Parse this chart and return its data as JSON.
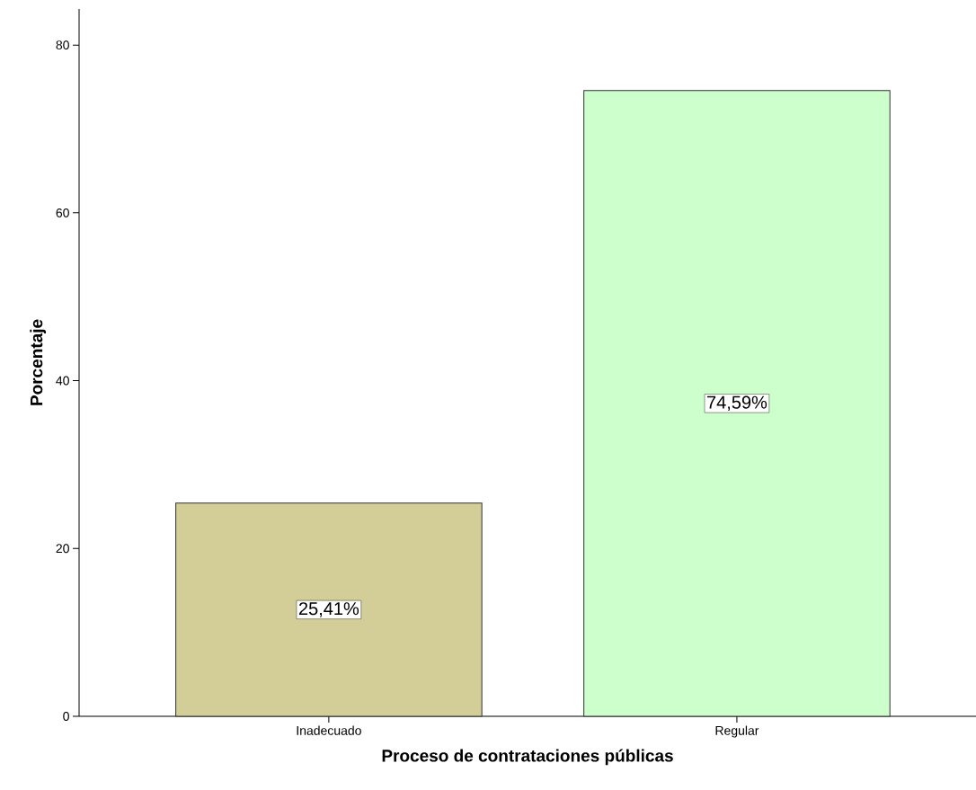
{
  "chart_data": {
    "type": "bar",
    "xlabel": "Proceso de contrataciones públicas",
    "ylabel": "Porcentaje",
    "categories": [
      "Inadecuado",
      "Regular"
    ],
    "values": [
      25.41,
      74.59
    ],
    "value_labels": [
      "25,41%",
      "74,59%"
    ],
    "colors": [
      "#d3ce98",
      "#ccffcc"
    ],
    "ylim": [
      0,
      84.3
    ],
    "yticks": [
      0,
      20,
      40,
      60,
      80
    ],
    "grid": false
  }
}
